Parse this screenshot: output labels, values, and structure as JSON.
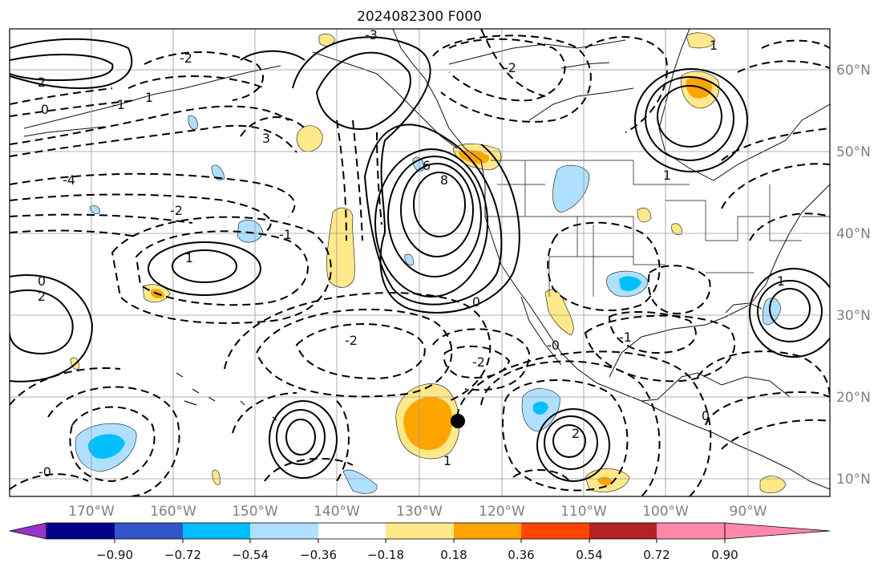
{
  "title": "2024082300 F000",
  "map": {
    "projection": "Plate Carree",
    "lon_labels": [
      "170°W",
      "160°W",
      "150°W",
      "140°W",
      "130°W",
      "120°W",
      "110°W",
      "100°W",
      "90°W"
    ],
    "lat_labels": [
      "60°N",
      "50°N",
      "40°N",
      "30°N",
      "20°N",
      "10°N"
    ],
    "contour_labels": [
      "-3",
      "-2",
      "-1",
      "0",
      "1",
      "2",
      "3",
      "-4",
      "6",
      "8",
      "-2",
      "1",
      "0",
      "-0",
      "-1",
      "1",
      "2",
      "-2",
      "2",
      "1",
      "-2",
      "0",
      "1",
      "0",
      "-0",
      "-1",
      "1",
      "-2"
    ],
    "marker": "black-dot"
  },
  "colorbar": {
    "ticks": [
      "−0.90",
      "−0.72",
      "−0.54",
      "−0.36",
      "−0.18",
      "0.18",
      "0.36",
      "0.54",
      "0.72",
      "0.90"
    ],
    "colors": [
      "#9933cc",
      "#00008b",
      "#3355cc",
      "#00bfff",
      "#b0e0ff",
      "#ffffff",
      "#ffe98a",
      "#ffa500",
      "#ff4500",
      "#b22222",
      "#ff88aa",
      "#ff88aa"
    ]
  }
}
